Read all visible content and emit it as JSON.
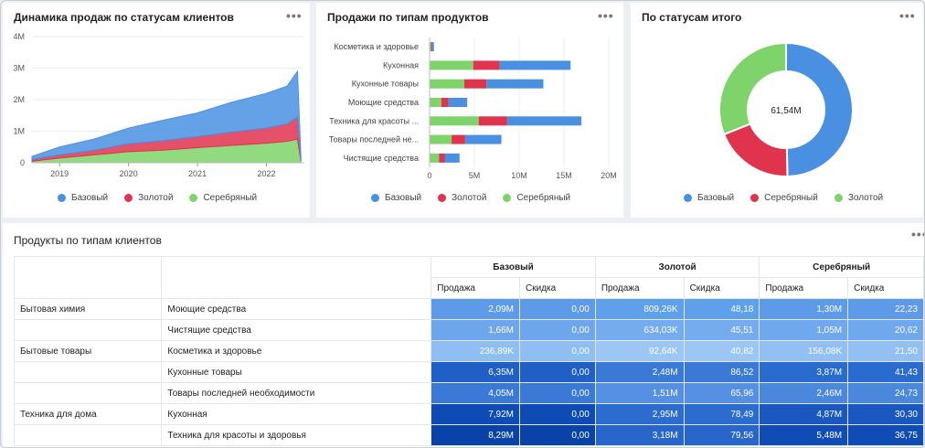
{
  "colors": {
    "base": "#4a90e2",
    "gold": "#e0334e",
    "silver": "#7ed36a"
  },
  "chart1": {
    "title": "Динамика продаж по статусам клиентов",
    "menu": "•••",
    "legend": [
      "Базовый",
      "Золотой",
      "Серебряный"
    ]
  },
  "chart2": {
    "title": "Продажи по типам продуктов",
    "menu": "•••",
    "legend": [
      "Базовый",
      "Золотой",
      "Серебряный"
    ]
  },
  "chart3": {
    "title": "По статусам итого",
    "menu": "•••",
    "total": "61,54M",
    "legend": [
      "Базовый",
      "Серебряный",
      "Золотой"
    ]
  },
  "table": {
    "title": "Продукты по типам клиентов",
    "menu": "•••",
    "groups": [
      "Базовый",
      "Золотой",
      "Серебряный"
    ],
    "sub_sale": "Продажа",
    "sub_disc": "Скидка",
    "rows": [
      {
        "cat": "Бытовая химия",
        "prod": "Моющие средства",
        "b_s": "2,09M",
        "b_d": "0,00",
        "g_s": "809,26K",
        "g_d": "48,18",
        "s_s": "1,30M",
        "s_d": "22,23"
      },
      {
        "cat": "",
        "prod": "Чистящие средства",
        "b_s": "1,66M",
        "b_d": "0,00",
        "g_s": "634,03K",
        "g_d": "45,51",
        "s_s": "1,05M",
        "s_d": "20,62"
      },
      {
        "cat": "Бытовые товары",
        "prod": "Косметика и здоровье",
        "b_s": "236,89K",
        "b_d": "0,00",
        "g_s": "92,64K",
        "g_d": "40,82",
        "s_s": "156,08K",
        "s_d": "21,50"
      },
      {
        "cat": "",
        "prod": "Кухонные товары",
        "b_s": "6,35M",
        "b_d": "0,00",
        "g_s": "2,48M",
        "g_d": "86,52",
        "s_s": "3,87M",
        "s_d": "41,43"
      },
      {
        "cat": "",
        "prod": "Товары последней необходимости",
        "b_s": "4,05M",
        "b_d": "0,00",
        "g_s": "1,51M",
        "g_d": "65,96",
        "s_s": "2,46M",
        "s_d": "24,73"
      },
      {
        "cat": "Техника для дома",
        "prod": "Кухонная",
        "b_s": "7,92M",
        "b_d": "0,00",
        "g_s": "2,95M",
        "g_d": "78,49",
        "s_s": "4,87M",
        "s_d": "30,30"
      },
      {
        "cat": "",
        "prod": "Техника для красоты и здоровья",
        "b_s": "8,29M",
        "b_d": "0,00",
        "g_s": "3,18M",
        "g_d": "79,56",
        "s_s": "5,48M",
        "s_d": "36,75"
      }
    ]
  },
  "chart_data": [
    {
      "type": "area",
      "title": "Динамика продаж по статусам клиентов",
      "x": [
        2018.6,
        2019.0,
        2019.5,
        2020.0,
        2020.5,
        2021.0,
        2021.5,
        2022.0,
        2022.3,
        2022.45,
        2022.5
      ],
      "x_ticks": [
        "2019",
        "2020",
        "2021",
        "2022"
      ],
      "x_tick_values": [
        2019,
        2020,
        2021,
        2022
      ],
      "y_ticks": [
        "0",
        "1M",
        "2M",
        "3M",
        "4M"
      ],
      "y_tick_values": [
        0,
        1,
        2,
        3,
        4
      ],
      "ylim": [
        0,
        4
      ],
      "series": [
        {
          "name": "Серебряный",
          "values": [
            0.05,
            0.15,
            0.25,
            0.35,
            0.4,
            0.48,
            0.55,
            0.62,
            0.68,
            0.75,
            0.05
          ]
        },
        {
          "name": "Золотой",
          "values": [
            0.05,
            0.1,
            0.15,
            0.25,
            0.3,
            0.35,
            0.42,
            0.48,
            0.55,
            0.7,
            0.02
          ]
        },
        {
          "name": "Базовый",
          "values": [
            0.1,
            0.25,
            0.35,
            0.5,
            0.65,
            0.75,
            0.95,
            1.1,
            1.2,
            1.45,
            0.1
          ]
        }
      ]
    },
    {
      "type": "bar",
      "title": "Продажи по типам продуктов",
      "categories": [
        "Косметика и здоровье",
        "Кухонная",
        "Кухонные товары",
        "Моющие средства",
        "Техника для красоты ...",
        "Товары последней не...",
        "Чистящие средства"
      ],
      "x_ticks": [
        "0",
        "5M",
        "10M",
        "15M",
        "20M"
      ],
      "x_tick_values": [
        0,
        5,
        10,
        15,
        20
      ],
      "xlim": [
        0,
        20
      ],
      "series": [
        {
          "name": "Серебряный",
          "values": [
            0.156,
            4.87,
            3.87,
            1.3,
            5.48,
            2.46,
            1.05
          ]
        },
        {
          "name": "Золотой",
          "values": [
            0.093,
            2.95,
            2.48,
            0.809,
            3.18,
            1.51,
            0.634
          ]
        },
        {
          "name": "Базовый",
          "values": [
            0.237,
            7.92,
            6.35,
            2.09,
            8.29,
            4.05,
            1.66
          ]
        }
      ]
    },
    {
      "type": "pie",
      "title": "По статусам итого",
      "categories": [
        "Базовый",
        "Золотой",
        "Серебряный"
      ],
      "values": [
        30.6,
        11.9,
        19.1
      ],
      "center_label": "61,54M"
    }
  ]
}
